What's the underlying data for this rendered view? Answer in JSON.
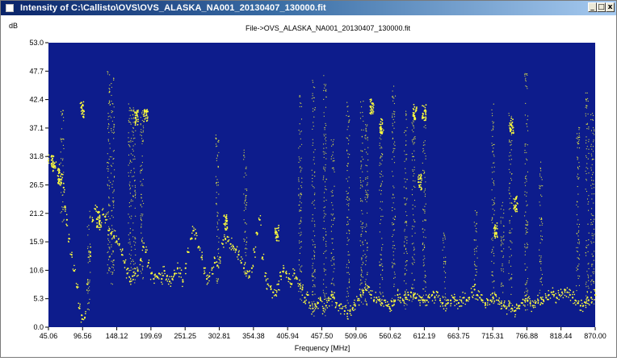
{
  "window": {
    "title": "Intensity of C:\\Callisto\\OVS\\OVS_ALASKA_NA001_20130407_130000.fit",
    "minimize_glyph": "_",
    "maximize_glyph": "□",
    "close_glyph": "x"
  },
  "chart_data": {
    "type": "scatter",
    "title": "File->OVS_ALASKA_NA001_20130407_130000.fit",
    "xlabel": "Frequency [MHz]",
    "ylabel": "dB",
    "xlim": [
      45.06,
      870.0
    ],
    "ylim": [
      0.0,
      53.0
    ],
    "x_ticks": [
      "45.06",
      "96.56",
      "148.12",
      "199.69",
      "251.25",
      "302.81",
      "354.38",
      "405.94",
      "457.50",
      "509.06",
      "560.62",
      "612.19",
      "663.75",
      "715.31",
      "766.88",
      "818.44",
      "870.00"
    ],
    "y_ticks": [
      "0.0",
      "5.3",
      "10.6",
      "15.9",
      "21.2",
      "26.5",
      "31.8",
      "37.1",
      "42.4",
      "47.7",
      "53.0"
    ],
    "background_color": "#0d1c8c",
    "point_color": "#ffff3c",
    "grid": false,
    "series": [
      {
        "values": [
          [
            45,
            31.0
          ],
          [
            50,
            30.5
          ],
          [
            55,
            30.0
          ],
          [
            60,
            29.5
          ],
          [
            65,
            28.5
          ],
          [
            68,
            26.0
          ],
          [
            70,
            22.5
          ],
          [
            73,
            20.0
          ],
          [
            76,
            16.5
          ],
          [
            80,
            13.5
          ],
          [
            84,
            10.5
          ],
          [
            88,
            7.5
          ],
          [
            92,
            3.5
          ],
          [
            96,
            1.5
          ],
          [
            100,
            1.8
          ],
          [
            104,
            8.0
          ],
          [
            108,
            14.0
          ],
          [
            112,
            20.0
          ],
          [
            116,
            22.0
          ],
          [
            120,
            21.5
          ],
          [
            124,
            19.0
          ],
          [
            128,
            21.0
          ],
          [
            132,
            20.0
          ],
          [
            136,
            18.0
          ],
          [
            140,
            17.5
          ],
          [
            144,
            17.0
          ],
          [
            148,
            16.0
          ],
          [
            152,
            15.5
          ],
          [
            156,
            13.5
          ],
          [
            160,
            12.0
          ],
          [
            164,
            10.0
          ],
          [
            168,
            8.5
          ],
          [
            172,
            9.5
          ],
          [
            176,
            10.0
          ],
          [
            180,
            10.5
          ],
          [
            184,
            12.5
          ],
          [
            188,
            15.0
          ],
          [
            192,
            14.0
          ],
          [
            196,
            12.0
          ],
          [
            200,
            10.0
          ],
          [
            204,
            9.0
          ],
          [
            208,
            9.5
          ],
          [
            212,
            10.0
          ],
          [
            216,
            9.0
          ],
          [
            220,
            10.5
          ],
          [
            224,
            9.5
          ],
          [
            228,
            8.5
          ],
          [
            232,
            9.0
          ],
          [
            236,
            10.0
          ],
          [
            240,
            11.0
          ],
          [
            244,
            10.0
          ],
          [
            248,
            8.5
          ],
          [
            252,
            11.0
          ],
          [
            256,
            14.0
          ],
          [
            260,
            16.5
          ],
          [
            264,
            18.0
          ],
          [
            268,
            17.5
          ],
          [
            272,
            15.0
          ],
          [
            276,
            13.0
          ],
          [
            280,
            11.0
          ],
          [
            284,
            9.0
          ],
          [
            288,
            9.5
          ],
          [
            292,
            11.0
          ],
          [
            296,
            12.0
          ],
          [
            300,
            11.5
          ],
          [
            304,
            13.0
          ],
          [
            308,
            15.5
          ],
          [
            312,
            16.5
          ],
          [
            316,
            16.0
          ],
          [
            320,
            15.5
          ],
          [
            324,
            15.0
          ],
          [
            328,
            14.5
          ],
          [
            332,
            13.5
          ],
          [
            336,
            12.0
          ],
          [
            340,
            11.0
          ],
          [
            344,
            10.0
          ],
          [
            348,
            9.5
          ],
          [
            352,
            11.0
          ],
          [
            356,
            14.0
          ],
          [
            360,
            17.5
          ],
          [
            364,
            20.0
          ],
          [
            368,
            13.0
          ],
          [
            372,
            9.5
          ],
          [
            376,
            8.0
          ],
          [
            380,
            7.5
          ],
          [
            384,
            6.5
          ],
          [
            388,
            6.0
          ],
          [
            392,
            8.0
          ],
          [
            396,
            9.5
          ],
          [
            400,
            11.0
          ],
          [
            404,
            10.0
          ],
          [
            408,
            9.0
          ],
          [
            412,
            8.0
          ],
          [
            416,
            10.0
          ],
          [
            420,
            9.0
          ],
          [
            424,
            8.0
          ],
          [
            428,
            7.0
          ],
          [
            432,
            5.5
          ],
          [
            436,
            6.0
          ],
          [
            440,
            4.0
          ],
          [
            444,
            3.5
          ],
          [
            448,
            4.0
          ],
          [
            452,
            4.5
          ],
          [
            456,
            5.0
          ],
          [
            460,
            3.5
          ],
          [
            464,
            4.0
          ],
          [
            468,
            5.0
          ],
          [
            472,
            6.0
          ],
          [
            476,
            5.5
          ],
          [
            480,
            4.5
          ],
          [
            484,
            4.0
          ],
          [
            488,
            3.5
          ],
          [
            492,
            3.0
          ],
          [
            496,
            2.5
          ],
          [
            500,
            3.0
          ],
          [
            504,
            3.5
          ],
          [
            508,
            4.0
          ],
          [
            512,
            5.0
          ],
          [
            516,
            6.0
          ],
          [
            520,
            6.5
          ],
          [
            524,
            7.0
          ],
          [
            528,
            7.5
          ],
          [
            532,
            6.0
          ],
          [
            536,
            5.0
          ],
          [
            540,
            5.5
          ],
          [
            544,
            5.0
          ],
          [
            548,
            4.5
          ],
          [
            552,
            5.0
          ],
          [
            556,
            4.0
          ],
          [
            560,
            3.5
          ],
          [
            564,
            4.0
          ],
          [
            568,
            5.0
          ],
          [
            572,
            6.0
          ],
          [
            576,
            5.5
          ],
          [
            580,
            5.0
          ],
          [
            584,
            5.5
          ],
          [
            588,
            6.0
          ],
          [
            592,
            6.5
          ],
          [
            596,
            6.0
          ],
          [
            600,
            5.5
          ],
          [
            604,
            5.0
          ],
          [
            608,
            5.5
          ],
          [
            612,
            5.0
          ],
          [
            616,
            5.0
          ],
          [
            620,
            5.5
          ],
          [
            624,
            6.0
          ],
          [
            628,
            5.5
          ],
          [
            632,
            6.5
          ],
          [
            636,
            5.0
          ],
          [
            640,
            4.5
          ],
          [
            644,
            4.0
          ],
          [
            648,
            4.5
          ],
          [
            652,
            5.0
          ],
          [
            656,
            5.5
          ],
          [
            660,
            5.0
          ],
          [
            664,
            4.5
          ],
          [
            668,
            5.0
          ],
          [
            672,
            5.5
          ],
          [
            676,
            5.0
          ],
          [
            680,
            5.5
          ],
          [
            684,
            6.5
          ],
          [
            688,
            7.0
          ],
          [
            692,
            6.0
          ],
          [
            696,
            5.5
          ],
          [
            700,
            5.0
          ],
          [
            704,
            4.5
          ],
          [
            708,
            5.0
          ],
          [
            712,
            5.0
          ],
          [
            716,
            5.5
          ],
          [
            720,
            6.0
          ],
          [
            724,
            5.0
          ],
          [
            728,
            4.5
          ],
          [
            732,
            4.0
          ],
          [
            736,
            3.5
          ],
          [
            740,
            4.0
          ],
          [
            744,
            3.5
          ],
          [
            748,
            3.0
          ],
          [
            752,
            3.5
          ],
          [
            756,
            4.0
          ],
          [
            760,
            4.5
          ],
          [
            764,
            5.0
          ],
          [
            768,
            5.0
          ],
          [
            772,
            4.5
          ],
          [
            776,
            4.0
          ],
          [
            780,
            4.5
          ],
          [
            784,
            5.0
          ],
          [
            788,
            5.5
          ],
          [
            792,
            5.0
          ],
          [
            796,
            5.5
          ],
          [
            800,
            6.0
          ],
          [
            804,
            6.5
          ],
          [
            808,
            6.0
          ],
          [
            812,
            5.5
          ],
          [
            816,
            6.0
          ],
          [
            820,
            6.5
          ],
          [
            824,
            7.0
          ],
          [
            828,
            6.5
          ],
          [
            832,
            6.0
          ],
          [
            836,
            5.5
          ],
          [
            840,
            5.0
          ],
          [
            844,
            4.5
          ],
          [
            848,
            4.0
          ],
          [
            852,
            4.0
          ],
          [
            856,
            4.5
          ],
          [
            860,
            5.0
          ],
          [
            864,
            5.5
          ],
          [
            870,
            6.0
          ]
        ]
      }
    ],
    "spikes": [
      {
        "x": 66,
        "y0": 19,
        "y1": 41
      },
      {
        "x": 106,
        "y0": 3,
        "y1": 22
      },
      {
        "x": 136,
        "y0": 10,
        "y1": 48
      },
      {
        "x": 142,
        "y0": 8,
        "y1": 47
      },
      {
        "x": 168,
        "y0": 8,
        "y1": 42
      },
      {
        "x": 174,
        "y0": 8,
        "y1": 41
      },
      {
        "x": 186,
        "y0": 8,
        "y1": 41
      },
      {
        "x": 300,
        "y0": 8,
        "y1": 36
      },
      {
        "x": 342,
        "y0": 10,
        "y1": 33
      },
      {
        "x": 425,
        "y0": 4,
        "y1": 44
      },
      {
        "x": 445,
        "y0": 2,
        "y1": 47
      },
      {
        "x": 462,
        "y0": 2,
        "y1": 47
      },
      {
        "x": 474,
        "y0": 4,
        "y1": 35
      },
      {
        "x": 497,
        "y0": 4,
        "y1": 42
      },
      {
        "x": 518,
        "y0": 4,
        "y1": 43
      },
      {
        "x": 525,
        "y0": 4,
        "y1": 38
      },
      {
        "x": 547,
        "y0": 4,
        "y1": 37
      },
      {
        "x": 566,
        "y0": 4,
        "y1": 45
      },
      {
        "x": 584,
        "y0": 3,
        "y1": 41
      },
      {
        "x": 596,
        "y0": 4,
        "y1": 40
      },
      {
        "x": 612,
        "y0": 5,
        "y1": 38
      },
      {
        "x": 642,
        "y0": 5,
        "y1": 18
      },
      {
        "x": 690,
        "y0": 5,
        "y1": 22
      },
      {
        "x": 716,
        "y0": 4,
        "y1": 42
      },
      {
        "x": 730,
        "y0": 4,
        "y1": 24
      },
      {
        "x": 742,
        "y0": 3,
        "y1": 40
      },
      {
        "x": 766,
        "y0": 3,
        "y1": 48
      },
      {
        "x": 788,
        "y0": 4,
        "y1": 31
      },
      {
        "x": 844,
        "y0": 4,
        "y1": 38
      },
      {
        "x": 858,
        "y0": 4,
        "y1": 44
      },
      {
        "x": 866,
        "y0": 4,
        "y1": 42
      }
    ],
    "clusters": [
      {
        "x": 52,
        "y": 30.5
      },
      {
        "x": 62,
        "y": 28.0
      },
      {
        "x": 96,
        "y": 40.5
      },
      {
        "x": 178,
        "y": 39.0
      },
      {
        "x": 192,
        "y": 39.5
      },
      {
        "x": 533,
        "y": 41.0
      },
      {
        "x": 548,
        "y": 37.5
      },
      {
        "x": 598,
        "y": 40.0
      },
      {
        "x": 612,
        "y": 40.0
      },
      {
        "x": 606,
        "y": 27.0
      },
      {
        "x": 744,
        "y": 37.5
      },
      {
        "x": 750,
        "y": 23.0
      },
      {
        "x": 720,
        "y": 18.0
      },
      {
        "x": 312,
        "y": 19.5
      },
      {
        "x": 390,
        "y": 17.5
      },
      {
        "x": 120,
        "y": 20.0
      }
    ]
  }
}
